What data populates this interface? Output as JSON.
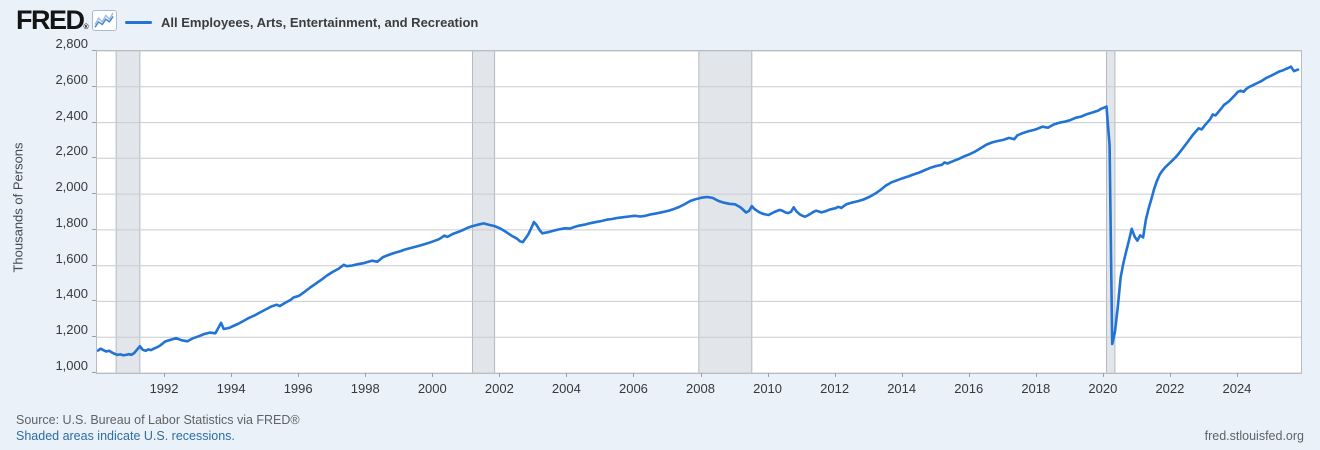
{
  "header": {
    "logo_text": "FRED",
    "registered_mark": "®",
    "legend_label": "All Employees, Arts, Entertainment, and Recreation"
  },
  "footer": {
    "source_text": "Source: U.S. Bureau of Labor Statistics via FRED®",
    "shaded_note": "Shaded areas indicate U.S. recessions.",
    "site_text": "fred.stlouisfed.org"
  },
  "colors": {
    "page_bg": "#eaf1f9",
    "plot_bg": "#ffffff",
    "line": "#2173d4",
    "grid": "#c9cccf",
    "border": "#b9bdc2",
    "recession_fill": "#e2e6ea",
    "recession_edge": "#b5bac0",
    "spark_light": "#9dbfe4",
    "spark_dark": "#4a84c8"
  },
  "chart_data": {
    "type": "line",
    "title": "All Employees, Arts, Entertainment, and Recreation",
    "ylabel": "Thousands of Persons",
    "xlabel": "",
    "legend_position": "top-left",
    "grid": "horizontal-only",
    "x_range": [
      1989.97,
      2025.88
    ],
    "y_range": [
      1000,
      2800
    ],
    "x_ticks": [
      1992,
      1994,
      1996,
      1998,
      2000,
      2002,
      2004,
      2006,
      2008,
      2010,
      2012,
      2014,
      2016,
      2018,
      2020,
      2022,
      2024
    ],
    "y_ticks": [
      1000,
      1200,
      1400,
      1600,
      1800,
      2000,
      2200,
      2400,
      2600,
      2800
    ],
    "recessions": [
      [
        1990.54,
        1991.25
      ],
      [
        2001.17,
        2001.83
      ],
      [
        2007.92,
        2009.5
      ],
      [
        2020.08,
        2020.33
      ]
    ],
    "series": [
      {
        "name": "All Employees, Arts, Entertainment, and Recreation",
        "units": "Thousands of Persons",
        "points": [
          [
            1990.0,
            1125
          ],
          [
            1990.08,
            1136
          ],
          [
            1990.17,
            1127
          ],
          [
            1990.25,
            1120
          ],
          [
            1990.33,
            1124
          ],
          [
            1990.42,
            1114
          ],
          [
            1990.5,
            1107
          ],
          [
            1990.58,
            1101
          ],
          [
            1990.67,
            1104
          ],
          [
            1990.75,
            1099
          ],
          [
            1990.83,
            1101
          ],
          [
            1990.92,
            1105
          ],
          [
            1991.0,
            1102
          ],
          [
            1991.08,
            1112
          ],
          [
            1991.17,
            1132
          ],
          [
            1991.25,
            1150
          ],
          [
            1991.33,
            1130
          ],
          [
            1991.42,
            1124
          ],
          [
            1991.5,
            1132
          ],
          [
            1991.58,
            1128
          ],
          [
            1991.67,
            1137
          ],
          [
            1991.75,
            1143
          ],
          [
            1991.83,
            1151
          ],
          [
            1991.92,
            1163
          ],
          [
            1992.0,
            1176
          ],
          [
            1992.17,
            1186
          ],
          [
            1992.33,
            1195
          ],
          [
            1992.5,
            1183
          ],
          [
            1992.67,
            1177
          ],
          [
            1992.83,
            1194
          ],
          [
            1993.0,
            1205
          ],
          [
            1993.17,
            1218
          ],
          [
            1993.33,
            1226
          ],
          [
            1993.5,
            1222
          ],
          [
            1993.67,
            1280
          ],
          [
            1993.75,
            1246
          ],
          [
            1993.92,
            1252
          ],
          [
            1994.0,
            1260
          ],
          [
            1994.17,
            1274
          ],
          [
            1994.33,
            1290
          ],
          [
            1994.5,
            1308
          ],
          [
            1994.67,
            1322
          ],
          [
            1994.83,
            1338
          ],
          [
            1995.0,
            1355
          ],
          [
            1995.17,
            1372
          ],
          [
            1995.33,
            1382
          ],
          [
            1995.42,
            1374
          ],
          [
            1995.58,
            1392
          ],
          [
            1995.75,
            1410
          ],
          [
            1995.83,
            1422
          ],
          [
            1996.0,
            1432
          ],
          [
            1996.17,
            1455
          ],
          [
            1996.33,
            1478
          ],
          [
            1996.5,
            1500
          ],
          [
            1996.67,
            1522
          ],
          [
            1996.83,
            1545
          ],
          [
            1997.0,
            1565
          ],
          [
            1997.17,
            1582
          ],
          [
            1997.33,
            1605
          ],
          [
            1997.42,
            1597
          ],
          [
            1997.58,
            1601
          ],
          [
            1997.75,
            1608
          ],
          [
            1997.92,
            1614
          ],
          [
            1998.0,
            1618
          ],
          [
            1998.17,
            1628
          ],
          [
            1998.33,
            1622
          ],
          [
            1998.5,
            1648
          ],
          [
            1998.67,
            1660
          ],
          [
            1998.83,
            1671
          ],
          [
            1999.0,
            1680
          ],
          [
            1999.17,
            1691
          ],
          [
            1999.33,
            1699
          ],
          [
            1999.5,
            1707
          ],
          [
            1999.67,
            1716
          ],
          [
            1999.83,
            1725
          ],
          [
            2000.0,
            1736
          ],
          [
            2000.17,
            1748
          ],
          [
            2000.33,
            1768
          ],
          [
            2000.42,
            1761
          ],
          [
            2000.58,
            1777
          ],
          [
            2000.75,
            1789
          ],
          [
            2000.92,
            1802
          ],
          [
            2001.0,
            1810
          ],
          [
            2001.17,
            1821
          ],
          [
            2001.33,
            1829
          ],
          [
            2001.5,
            1836
          ],
          [
            2001.67,
            1828
          ],
          [
            2001.83,
            1821
          ],
          [
            2002.0,
            1808
          ],
          [
            2002.17,
            1789
          ],
          [
            2002.33,
            1768
          ],
          [
            2002.5,
            1751
          ],
          [
            2002.58,
            1737
          ],
          [
            2002.67,
            1731
          ],
          [
            2002.83,
            1774
          ],
          [
            2002.92,
            1809
          ],
          [
            2003.0,
            1844
          ],
          [
            2003.08,
            1827
          ],
          [
            2003.17,
            1799
          ],
          [
            2003.25,
            1781
          ],
          [
            2003.42,
            1787
          ],
          [
            2003.58,
            1795
          ],
          [
            2003.75,
            1803
          ],
          [
            2003.92,
            1809
          ],
          [
            2004.08,
            1807
          ],
          [
            2004.17,
            1814
          ],
          [
            2004.33,
            1823
          ],
          [
            2004.5,
            1829
          ],
          [
            2004.67,
            1837
          ],
          [
            2004.83,
            1843
          ],
          [
            2005.0,
            1849
          ],
          [
            2005.17,
            1857
          ],
          [
            2005.33,
            1861
          ],
          [
            2005.5,
            1867
          ],
          [
            2005.67,
            1871
          ],
          [
            2005.83,
            1875
          ],
          [
            2006.0,
            1879
          ],
          [
            2006.17,
            1875
          ],
          [
            2006.33,
            1879
          ],
          [
            2006.5,
            1887
          ],
          [
            2006.67,
            1893
          ],
          [
            2006.83,
            1899
          ],
          [
            2007.0,
            1906
          ],
          [
            2007.17,
            1916
          ],
          [
            2007.33,
            1928
          ],
          [
            2007.5,
            1944
          ],
          [
            2007.67,
            1962
          ],
          [
            2007.83,
            1972
          ],
          [
            2008.0,
            1980
          ],
          [
            2008.17,
            1984
          ],
          [
            2008.33,
            1979
          ],
          [
            2008.5,
            1962
          ],
          [
            2008.67,
            1952
          ],
          [
            2008.83,
            1946
          ],
          [
            2009.0,
            1943
          ],
          [
            2009.17,
            1925
          ],
          [
            2009.25,
            1911
          ],
          [
            2009.33,
            1897
          ],
          [
            2009.42,
            1906
          ],
          [
            2009.5,
            1933
          ],
          [
            2009.58,
            1917
          ],
          [
            2009.67,
            1905
          ],
          [
            2009.75,
            1896
          ],
          [
            2009.83,
            1890
          ],
          [
            2009.92,
            1886
          ],
          [
            2010.0,
            1883
          ],
          [
            2010.17,
            1900
          ],
          [
            2010.33,
            1912
          ],
          [
            2010.42,
            1906
          ],
          [
            2010.5,
            1898
          ],
          [
            2010.58,
            1894
          ],
          [
            2010.67,
            1901
          ],
          [
            2010.75,
            1926
          ],
          [
            2010.83,
            1904
          ],
          [
            2010.92,
            1888
          ],
          [
            2011.0,
            1880
          ],
          [
            2011.08,
            1874
          ],
          [
            2011.17,
            1881
          ],
          [
            2011.25,
            1890
          ],
          [
            2011.33,
            1900
          ],
          [
            2011.42,
            1907
          ],
          [
            2011.5,
            1903
          ],
          [
            2011.58,
            1898
          ],
          [
            2011.67,
            1903
          ],
          [
            2011.75,
            1908
          ],
          [
            2011.83,
            1914
          ],
          [
            2011.92,
            1918
          ],
          [
            2012.0,
            1921
          ],
          [
            2012.08,
            1929
          ],
          [
            2012.17,
            1923
          ],
          [
            2012.25,
            1934
          ],
          [
            2012.33,
            1944
          ],
          [
            2012.5,
            1953
          ],
          [
            2012.67,
            1961
          ],
          [
            2012.83,
            1970
          ],
          [
            2013.0,
            1984
          ],
          [
            2013.17,
            2002
          ],
          [
            2013.33,
            2022
          ],
          [
            2013.5,
            2048
          ],
          [
            2013.67,
            2066
          ],
          [
            2013.83,
            2077
          ],
          [
            2014.0,
            2089
          ],
          [
            2014.17,
            2099
          ],
          [
            2014.33,
            2110
          ],
          [
            2014.5,
            2121
          ],
          [
            2014.67,
            2135
          ],
          [
            2014.83,
            2147
          ],
          [
            2015.0,
            2157
          ],
          [
            2015.17,
            2164
          ],
          [
            2015.25,
            2177
          ],
          [
            2015.33,
            2171
          ],
          [
            2015.5,
            2184
          ],
          [
            2015.67,
            2197
          ],
          [
            2015.83,
            2211
          ],
          [
            2016.0,
            2223
          ],
          [
            2016.17,
            2239
          ],
          [
            2016.33,
            2257
          ],
          [
            2016.5,
            2277
          ],
          [
            2016.67,
            2289
          ],
          [
            2016.83,
            2297
          ],
          [
            2017.0,
            2303
          ],
          [
            2017.17,
            2314
          ],
          [
            2017.33,
            2307
          ],
          [
            2017.42,
            2329
          ],
          [
            2017.58,
            2341
          ],
          [
            2017.75,
            2351
          ],
          [
            2017.92,
            2359
          ],
          [
            2018.0,
            2364
          ],
          [
            2018.17,
            2377
          ],
          [
            2018.33,
            2371
          ],
          [
            2018.5,
            2389
          ],
          [
            2018.67,
            2399
          ],
          [
            2018.83,
            2405
          ],
          [
            2019.0,
            2414
          ],
          [
            2019.17,
            2427
          ],
          [
            2019.33,
            2434
          ],
          [
            2019.5,
            2447
          ],
          [
            2019.67,
            2457
          ],
          [
            2019.83,
            2467
          ],
          [
            2019.92,
            2477
          ],
          [
            2020.0,
            2483
          ],
          [
            2020.08,
            2490
          ],
          [
            2020.17,
            2272
          ],
          [
            2020.25,
            1162
          ],
          [
            2020.33,
            1228
          ],
          [
            2020.42,
            1375
          ],
          [
            2020.5,
            1532
          ],
          [
            2020.58,
            1612
          ],
          [
            2020.67,
            1682
          ],
          [
            2020.75,
            1742
          ],
          [
            2020.83,
            1806
          ],
          [
            2020.92,
            1762
          ],
          [
            2021.0,
            1740
          ],
          [
            2021.08,
            1770
          ],
          [
            2021.17,
            1758
          ],
          [
            2021.25,
            1855
          ],
          [
            2021.33,
            1915
          ],
          [
            2021.42,
            1975
          ],
          [
            2021.5,
            2028
          ],
          [
            2021.58,
            2072
          ],
          [
            2021.67,
            2110
          ],
          [
            2021.75,
            2132
          ],
          [
            2021.83,
            2150
          ],
          [
            2021.92,
            2166
          ],
          [
            2022.0,
            2180
          ],
          [
            2022.17,
            2212
          ],
          [
            2022.33,
            2250
          ],
          [
            2022.5,
            2292
          ],
          [
            2022.67,
            2335
          ],
          [
            2022.83,
            2368
          ],
          [
            2022.92,
            2362
          ],
          [
            2023.0,
            2382
          ],
          [
            2023.17,
            2418
          ],
          [
            2023.25,
            2445
          ],
          [
            2023.33,
            2440
          ],
          [
            2023.5,
            2478
          ],
          [
            2023.58,
            2498
          ],
          [
            2023.67,
            2510
          ],
          [
            2023.75,
            2522
          ],
          [
            2023.83,
            2538
          ],
          [
            2023.92,
            2555
          ],
          [
            2024.0,
            2572
          ],
          [
            2024.08,
            2578
          ],
          [
            2024.17,
            2572
          ],
          [
            2024.25,
            2588
          ],
          [
            2024.33,
            2598
          ],
          [
            2024.42,
            2606
          ],
          [
            2024.5,
            2614
          ],
          [
            2024.58,
            2621
          ],
          [
            2024.67,
            2629
          ],
          [
            2024.75,
            2638
          ],
          [
            2024.83,
            2648
          ],
          [
            2024.92,
            2656
          ],
          [
            2025.0,
            2663
          ],
          [
            2025.08,
            2671
          ],
          [
            2025.17,
            2679
          ],
          [
            2025.25,
            2687
          ],
          [
            2025.33,
            2691
          ],
          [
            2025.42,
            2699
          ],
          [
            2025.5,
            2705
          ],
          [
            2025.58,
            2713
          ],
          [
            2025.67,
            2687
          ],
          [
            2025.75,
            2693
          ],
          [
            2025.79,
            2696
          ]
        ]
      }
    ]
  }
}
